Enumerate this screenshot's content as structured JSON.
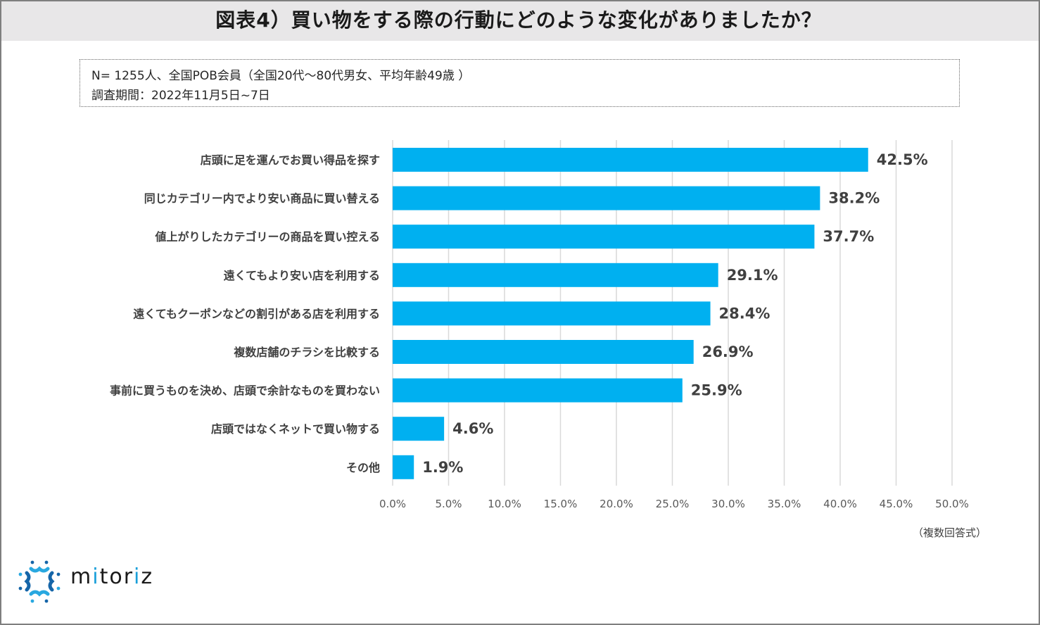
{
  "header": {
    "title": "図表4）買い物をする際の行動にどのような変化がありましたか？"
  },
  "note": {
    "line1": "N= 1255人、全国POB会員（全国20代～80代男女、平均年齢49歳 ）",
    "line2": "調査期間：2022年11月5日~7日"
  },
  "footnote": "（複数回答式）",
  "logo": {
    "text": "mitoriz",
    "brand_color": "#1a9fd9"
  },
  "colors": {
    "bar": "#00b0f0",
    "grid": "#d9d9d9",
    "text": "#404040"
  },
  "chart_data": {
    "type": "bar",
    "orientation": "horizontal",
    "title": "図表4）買い物をする際の行動にどのような変化がありましたか？",
    "xlabel": "",
    "ylabel": "",
    "xlim": [
      0,
      50
    ],
    "grid": true,
    "categories": [
      "店頭に足を運んでお買い得品を探す",
      "同じカテゴリー内でより安い商品に買い替える",
      "値上がりしたカテゴリーの商品を買い控える",
      "遠くてもより安い店を利用する",
      "遠くてもクーポンなどの割引がある店を利用する",
      "複数店舗のチラシを比較する",
      "事前に買うものを決め、店頭で余計なものを買わない",
      "店頭ではなくネットで買い物する",
      "その他"
    ],
    "values": [
      42.5,
      38.2,
      37.7,
      29.1,
      28.4,
      26.9,
      25.9,
      4.6,
      1.9
    ],
    "value_labels": [
      "42.5%",
      "38.2%",
      "37.7%",
      "29.1%",
      "28.4%",
      "26.9%",
      "25.9%",
      "4.6%",
      "1.9%"
    ],
    "ticks": [
      0,
      5,
      10,
      15,
      20,
      25,
      30,
      35,
      40,
      45,
      50
    ],
    "tick_labels": [
      "0.0%",
      "5.0%",
      "10.0%",
      "15.0%",
      "20.0%",
      "25.0%",
      "30.0%",
      "35.0%",
      "40.0%",
      "45.0%",
      "50.0%"
    ]
  }
}
